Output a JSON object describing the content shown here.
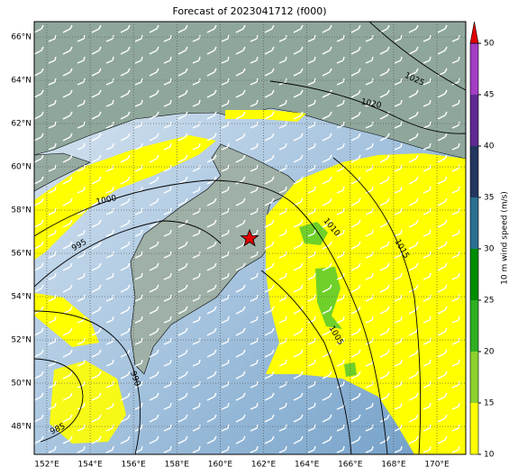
{
  "title": "Forecast of 2023041712 (f000)",
  "map": {
    "lon_lim": [
      151.42,
      171.33
    ],
    "lat_lim": [
      46.71,
      66.71
    ],
    "lon_ticks": [
      {
        "value": 152,
        "label": "152°E"
      },
      {
        "value": 154,
        "label": "154°E"
      },
      {
        "value": 156,
        "label": "156°E"
      },
      {
        "value": 158,
        "label": "158°E"
      },
      {
        "value": 160,
        "label": "160°E"
      },
      {
        "value": 162,
        "label": "162°E"
      },
      {
        "value": 164,
        "label": "164°E"
      },
      {
        "value": 166,
        "label": "166°E"
      },
      {
        "value": 168,
        "label": "168°E"
      },
      {
        "value": 170,
        "label": "170°E"
      }
    ],
    "lat_ticks": [
      {
        "value": 66,
        "label": "66°N"
      },
      {
        "value": 64,
        "label": "64°N"
      },
      {
        "value": 62,
        "label": "62°N"
      },
      {
        "value": 60,
        "label": "60°N"
      },
      {
        "value": 58,
        "label": "58°N"
      },
      {
        "value": 56,
        "label": "56°N"
      },
      {
        "value": 54,
        "label": "54°N"
      },
      {
        "value": 52,
        "label": "52°N"
      },
      {
        "value": 50,
        "label": "50°N"
      },
      {
        "value": 48,
        "label": "48°N"
      }
    ],
    "isobar_labels": [
      1025,
      1020,
      1000,
      995,
      1010,
      1015,
      1005,
      990,
      985
    ]
  },
  "colorbar": {
    "label": "10 m wind speed (m/s)",
    "lim": [
      10,
      50
    ],
    "ticks": [
      10,
      15,
      20,
      25,
      30,
      35,
      40,
      45,
      50
    ],
    "colors": [
      "#ffff00",
      "#8cd12c",
      "#2fae23",
      "#008c00",
      "#2a6f90",
      "#22365e",
      "#5e2a92",
      "#a23dc4"
    ],
    "over_color": "#e00000"
  }
}
